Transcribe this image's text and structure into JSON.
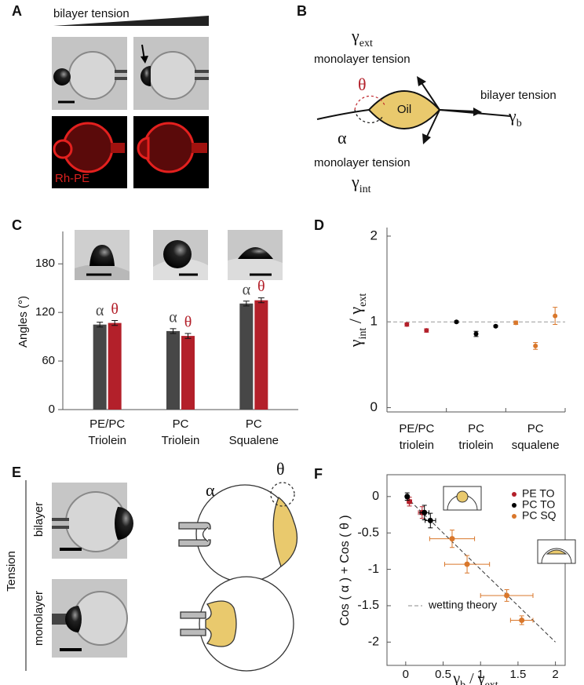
{
  "panels": {
    "A": {
      "label": "A",
      "tension_label": "bilayer tension",
      "stain_label": "Rh-PE"
    },
    "B": {
      "label": "B",
      "gamma_ext": [
        "γ",
        "ext"
      ],
      "top_tension": "monolayer tension",
      "theta": "θ",
      "alpha": "α",
      "oil": "Oil",
      "bilayer_tension": "bilayer tension",
      "gamma_b": [
        "γ",
        "b"
      ],
      "bottom_tension": "monolayer tension",
      "gamma_int": [
        "γ",
        "int"
      ]
    },
    "C": {
      "label": "C"
    },
    "D": {
      "label": "D"
    },
    "E": {
      "label": "E",
      "axis_label": "Tension",
      "row_labels": [
        "bilayer",
        "monolayer"
      ],
      "alpha": "α",
      "theta": "θ"
    },
    "F": {
      "label": "F"
    }
  },
  "chart_data": [
    {
      "type": "bar",
      "ylabel": "Angles (°)",
      "categories": [
        "PE/PC Triolein",
        "PC Triolein",
        "PC Squalene"
      ],
      "series": [
        {
          "name": "α",
          "color": "#474747",
          "values": [
            105,
            97,
            131
          ],
          "errors": [
            3,
            3,
            3
          ]
        },
        {
          "name": "θ",
          "color": "#b3202a",
          "values": [
            107,
            91,
            135
          ],
          "errors": [
            3,
            3,
            3
          ]
        }
      ],
      "ylim": [
        0,
        220
      ],
      "yticks": [
        0,
        60,
        120,
        180
      ]
    },
    {
      "type": "dot",
      "ylabel": [
        "γ",
        "int",
        " / γ",
        "ext"
      ],
      "categories": [
        "PE/PC triolein",
        "PC triolein",
        "PC squalene"
      ],
      "groups": [
        {
          "color": "#b3202a",
          "values": [
            0.97,
            0.9
          ],
          "errors": [
            0.02,
            0.02
          ]
        },
        {
          "color": "#000000",
          "values": [
            1.0,
            0.86,
            0.95
          ],
          "errors": [
            0.01,
            0.03,
            0.01
          ]
        },
        {
          "color": "#d9772b",
          "values": [
            0.99,
            0.72,
            1.07
          ],
          "errors": [
            0.02,
            0.04,
            0.1
          ]
        }
      ],
      "reference_line": 1,
      "ylim": [
        -0.05,
        2.1
      ],
      "yticks": [
        0,
        1,
        2
      ]
    },
    {
      "type": "scatter",
      "ylabel": "Cos ( α ) + Cos ( θ )",
      "xlabel": [
        "γ",
        "b",
        " / γ",
        "ext"
      ],
      "series": [
        {
          "name": "PE TO",
          "color": "#b3202a",
          "x": [
            0.05,
            0.22
          ],
          "values": [
            -0.07,
            -0.22
          ],
          "xerr": [
            0.03,
            0.05
          ],
          "yerr": [
            0.06,
            0.08
          ]
        },
        {
          "name": "PC TO",
          "color": "#000000",
          "x": [
            0.02,
            0.25,
            0.33
          ],
          "values": [
            0.0,
            -0.22,
            -0.33
          ],
          "xerr": [
            0.02,
            0.06,
            0.07
          ],
          "yerr": [
            0.05,
            0.1,
            0.1
          ]
        },
        {
          "name": "PC SQ",
          "color": "#d9772b",
          "x": [
            0.62,
            0.82,
            1.35,
            1.55
          ],
          "values": [
            -0.58,
            -0.93,
            -1.36,
            -1.7
          ],
          "xerr": [
            0.3,
            0.3,
            0.35,
            0.15
          ],
          "yerr": [
            0.12,
            0.12,
            0.08,
            0.06
          ]
        }
      ],
      "fit_label": "wetting theory",
      "fit": {
        "x": [
          0,
          2
        ],
        "values": [
          0,
          -2
        ]
      },
      "xlim": [
        -0.25,
        2.13
      ],
      "ylim": [
        -2.32,
        0.3
      ],
      "xticks": [
        0,
        0.5,
        1,
        1.5,
        2
      ],
      "yticks": [
        0,
        -0.5,
        -1,
        -1.5,
        -2
      ],
      "legend": "upper right"
    }
  ]
}
